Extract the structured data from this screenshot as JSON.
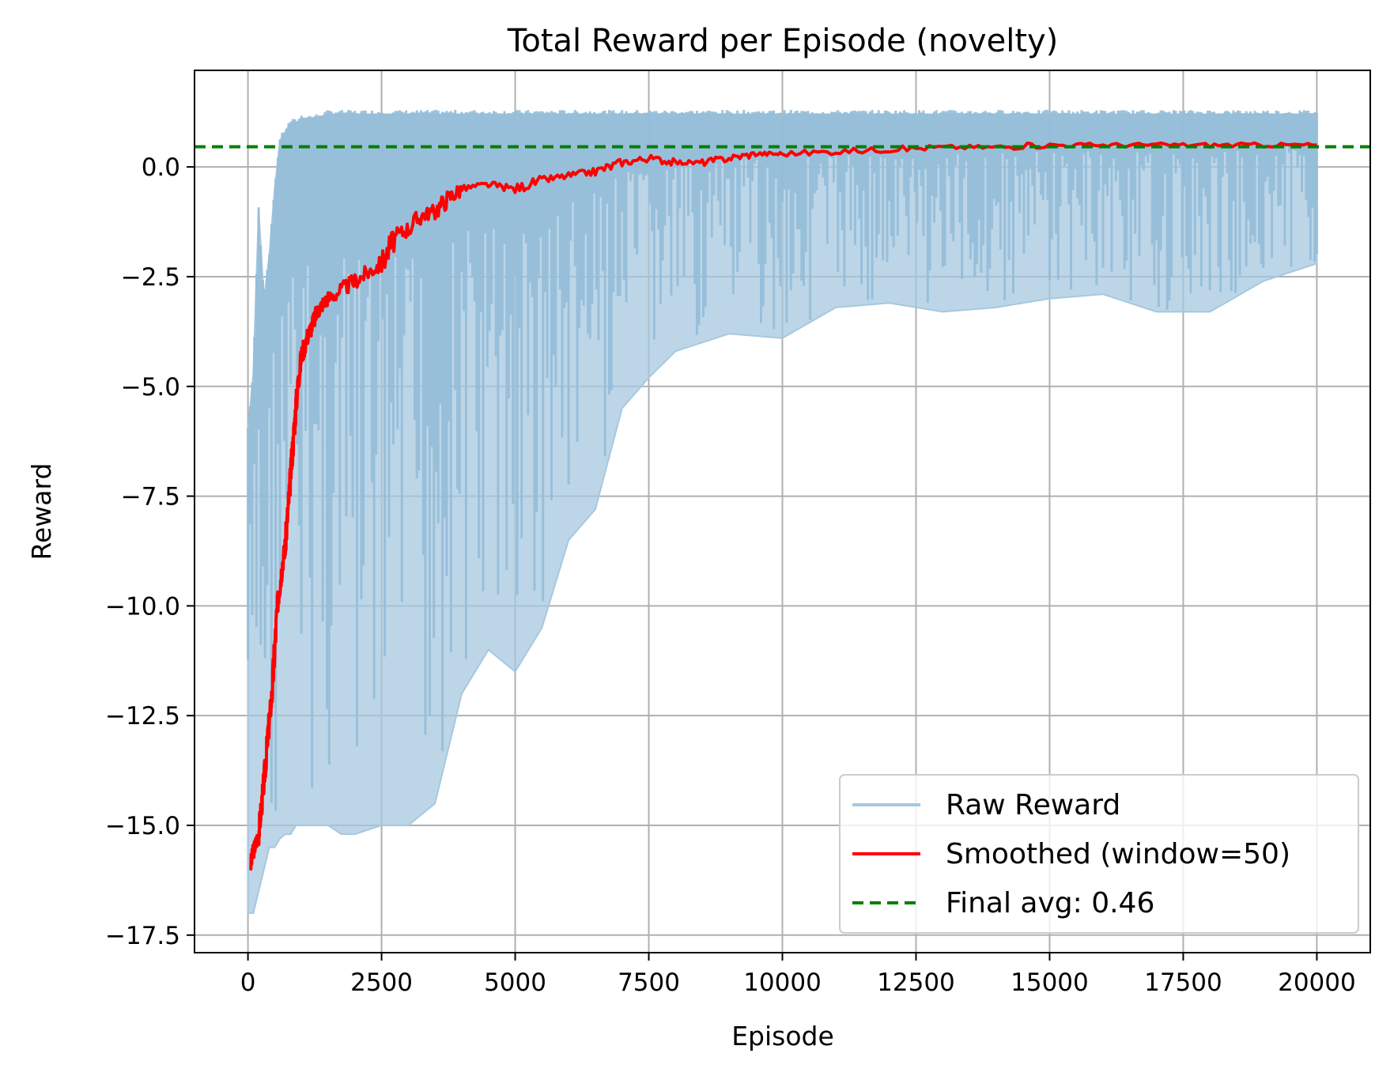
{
  "chart_data": {
    "type": "line",
    "title": "Total Reward per Episode (novelty)",
    "xlabel": "Episode",
    "ylabel": "Reward",
    "xlim": [
      -1000,
      21000
    ],
    "ylim": [
      -17.9,
      2.2
    ],
    "xticks": [
      0,
      2500,
      5000,
      7500,
      10000,
      12500,
      15000,
      17500,
      20000
    ],
    "xtick_labels": [
      "0",
      "2500",
      "5000",
      "7500",
      "10000",
      "12500",
      "15000",
      "17500",
      "20000"
    ],
    "yticks": [
      0.0,
      -2.5,
      -5.0,
      -7.5,
      -10.0,
      -12.5,
      -15.0,
      -17.5
    ],
    "ytick_labels": [
      "0.0",
      "−2.5",
      "−5.0",
      "−7.5",
      "−10.0",
      "−12.5",
      "−15.0",
      "−17.5"
    ],
    "grid": true,
    "legend_position": "lower-right",
    "series": [
      {
        "name": "Raw Reward",
        "style": "band",
        "color": "#a6c8e0",
        "x": [
          0,
          100,
          200,
          300,
          400,
          500,
          600,
          700,
          800,
          900,
          1000,
          1250,
          1500,
          1750,
          2000,
          2250,
          2500,
          3000,
          3500,
          4000,
          4500,
          5000,
          5500,
          6000,
          6500,
          7000,
          7500,
          8000,
          9000,
          10000,
          11000,
          12000,
          13000,
          14000,
          15000,
          16000,
          17000,
          18000,
          19000,
          20000
        ],
        "high": [
          -6.0,
          -4.7,
          -1.0,
          -3.0,
          -2.0,
          -0.5,
          0.6,
          0.8,
          1.0,
          1.0,
          1.1,
          1.1,
          1.2,
          1.2,
          1.2,
          1.2,
          1.2,
          1.2,
          1.2,
          1.2,
          1.2,
          1.2,
          1.2,
          1.2,
          1.2,
          1.2,
          1.2,
          1.2,
          1.2,
          1.2,
          1.2,
          1.2,
          1.2,
          1.2,
          1.2,
          1.2,
          1.2,
          1.2,
          1.2,
          1.2
        ],
        "low": [
          -17.0,
          -17.0,
          -16.5,
          -16.0,
          -15.5,
          -15.5,
          -15.3,
          -15.2,
          -15.2,
          -15.0,
          -15.0,
          -15.0,
          -15.0,
          -15.2,
          -15.2,
          -15.1,
          -15.0,
          -15.0,
          -14.5,
          -12.0,
          -11.0,
          -11.5,
          -10.5,
          -8.5,
          -7.8,
          -5.5,
          -4.8,
          -4.2,
          -3.8,
          -3.9,
          -3.2,
          -3.1,
          -3.3,
          -3.2,
          -3.0,
          -2.9,
          -3.3,
          -3.3,
          -2.6,
          -2.2
        ]
      },
      {
        "name": "Smoothed (window=50)",
        "style": "line",
        "color": "#ff0000",
        "x": [
          50,
          100,
          150,
          200,
          250,
          300,
          350,
          400,
          450,
          500,
          550,
          600,
          650,
          700,
          750,
          800,
          850,
          900,
          950,
          1000,
          1100,
          1200,
          1300,
          1400,
          1500,
          1750,
          2000,
          2250,
          2500,
          2750,
          3000,
          3250,
          3500,
          3750,
          4000,
          4500,
          5000,
          5500,
          6000,
          6500,
          7000,
          7500,
          8000,
          8500,
          9000,
          9500,
          10000,
          11000,
          12000,
          13000,
          14000,
          15000,
          16000,
          17000,
          18000,
          19000,
          20000
        ],
        "y": [
          -15.9,
          -15.6,
          -15.4,
          -15.2,
          -14.6,
          -14.0,
          -13.3,
          -12.6,
          -12.0,
          -11.0,
          -10.0,
          -9.5,
          -9.0,
          -8.6,
          -7.8,
          -7.0,
          -6.2,
          -5.4,
          -4.8,
          -4.3,
          -3.9,
          -3.6,
          -3.3,
          -3.1,
          -3.0,
          -2.8,
          -2.6,
          -2.4,
          -2.2,
          -1.6,
          -1.4,
          -1.1,
          -1.0,
          -0.7,
          -0.5,
          -0.4,
          -0.5,
          -0.3,
          -0.2,
          -0.1,
          0.1,
          0.2,
          0.1,
          0.1,
          0.2,
          0.3,
          0.3,
          0.35,
          0.4,
          0.45,
          0.45,
          0.5,
          0.5,
          0.5,
          0.5,
          0.5,
          0.5
        ]
      },
      {
        "name": "Final avg: 0.46",
        "style": "hline",
        "color": "#008000",
        "y": 0.46
      }
    ]
  }
}
